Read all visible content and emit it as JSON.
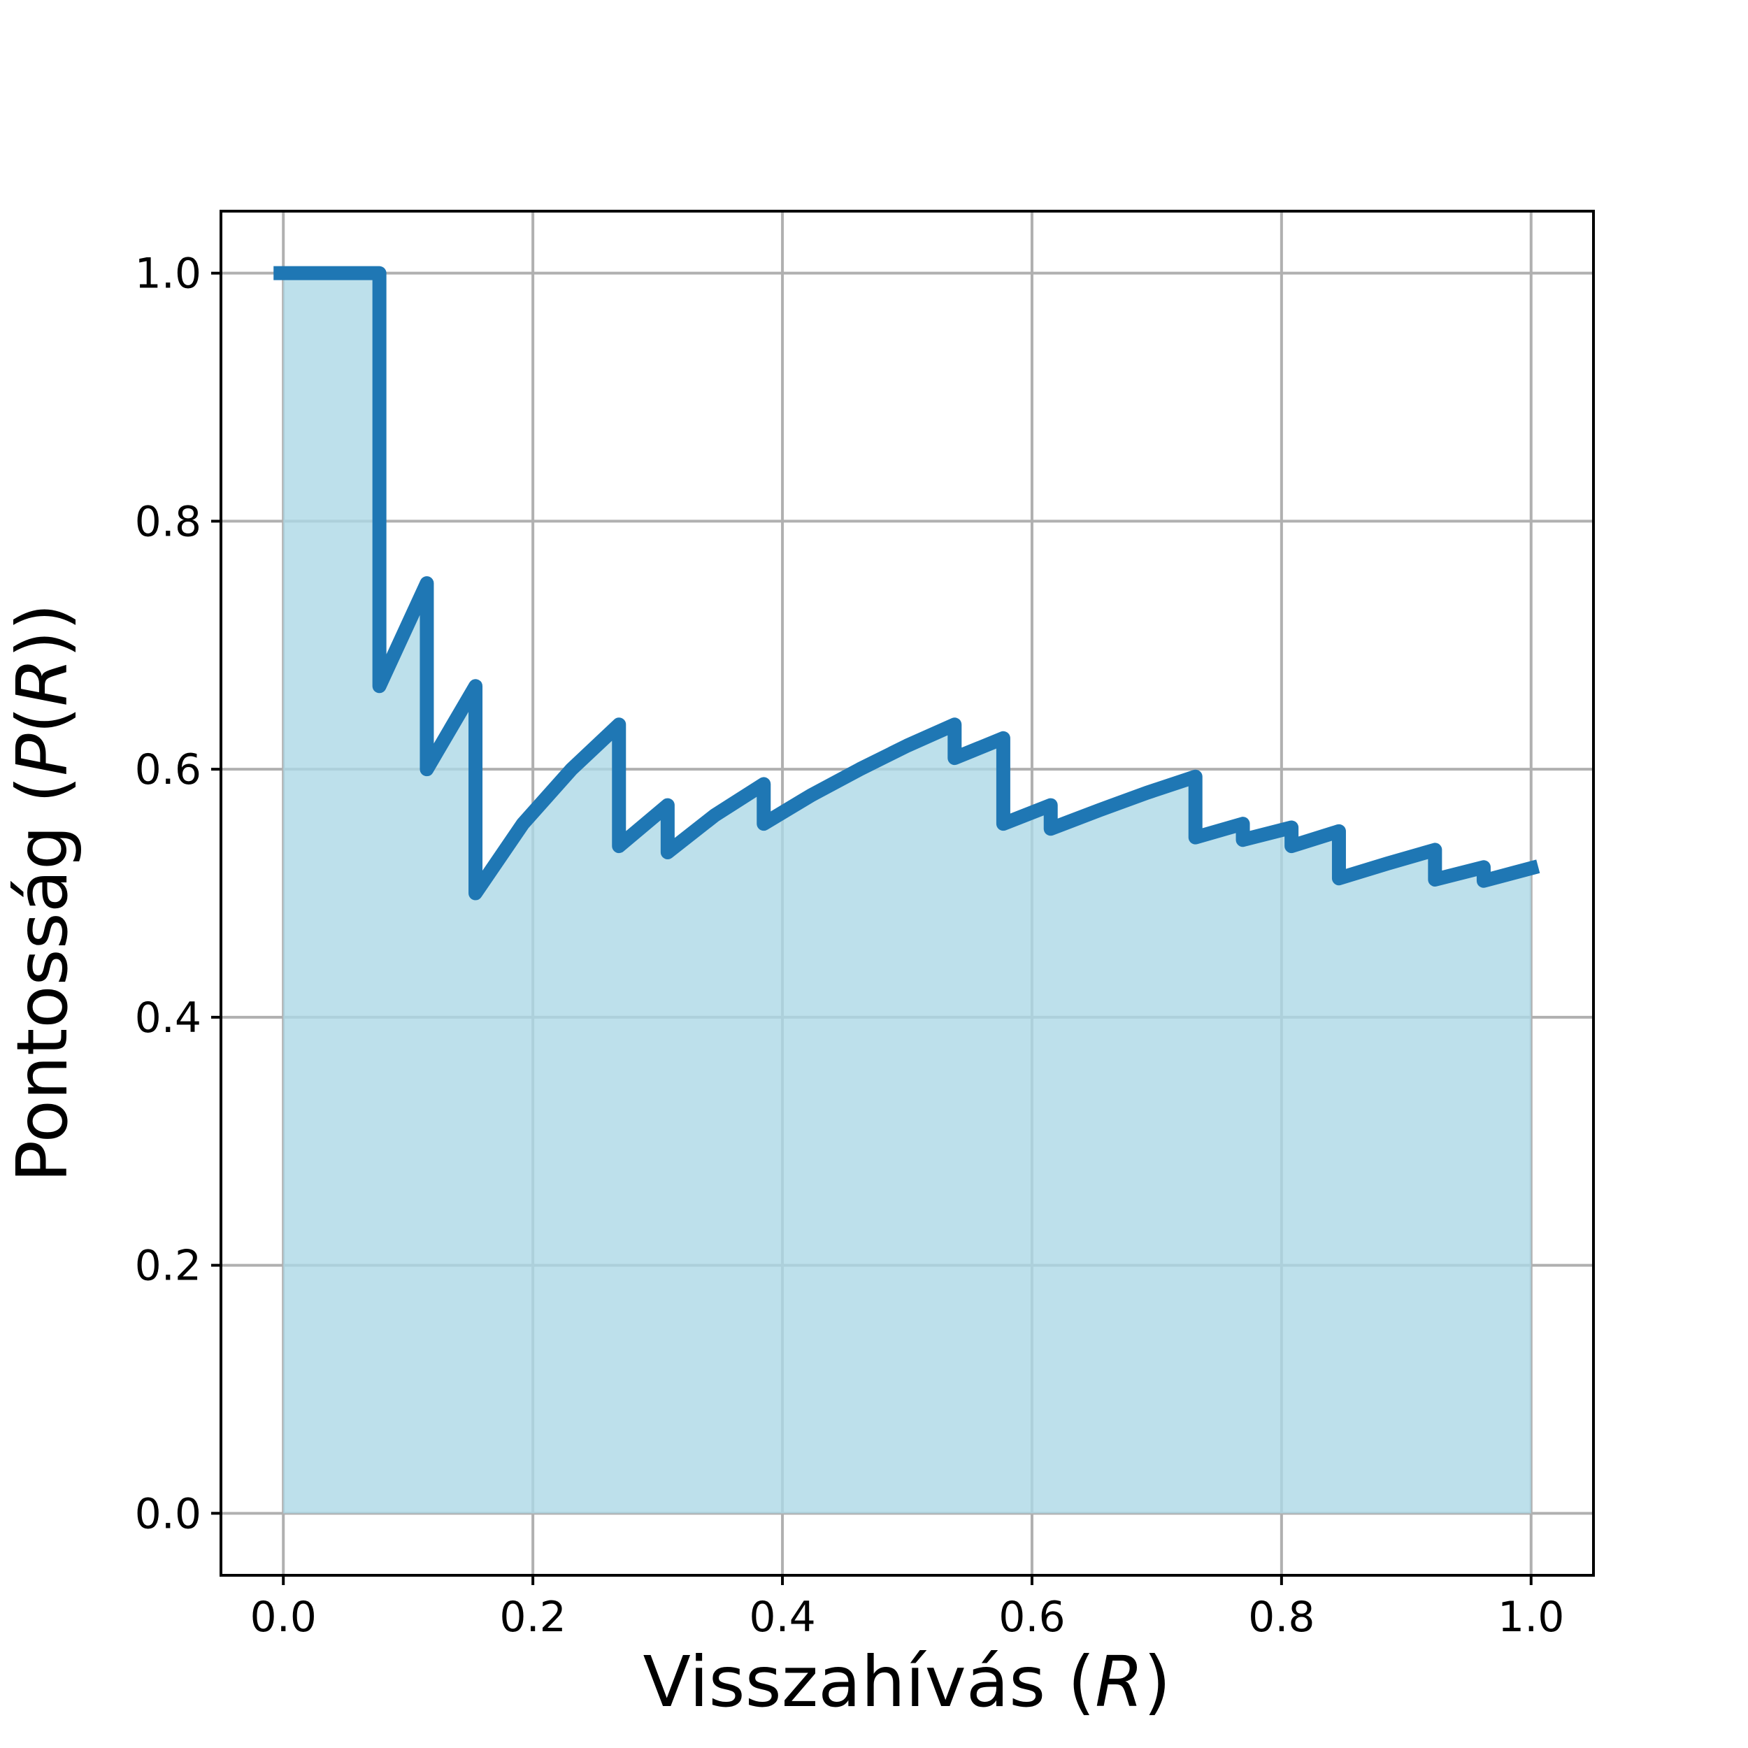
{
  "chart_data": {
    "type": "area",
    "title": "",
    "xlabel": {
      "prefix": "Visszahívás (",
      "var": "R",
      "suffix": ")"
    },
    "ylabel": {
      "prefix": "Pontosság (",
      "fn": "P",
      "open": "(",
      "var": "R",
      "close": "))"
    },
    "xlim": [
      -0.05,
      1.05
    ],
    "ylim": [
      -0.05,
      1.05
    ],
    "xticks": [
      0.0,
      0.2,
      0.4,
      0.6,
      0.8,
      1.0
    ],
    "yticks": [
      0.0,
      0.2,
      0.4,
      0.6,
      0.8,
      1.0
    ],
    "xtick_labels": [
      "0.0",
      "0.2",
      "0.4",
      "0.6",
      "0.8",
      "1.0"
    ],
    "ytick_labels": [
      "0.0",
      "0.2",
      "0.4",
      "0.6",
      "0.8",
      "1.0"
    ],
    "grid": true,
    "legend": "none",
    "colors": {
      "line": "#1f77b4",
      "fill": "#add8e6",
      "grid": "#b0b0b0"
    },
    "series": [
      {
        "x": [
          0.0,
          0.077,
          0.077,
          0.115,
          0.115,
          0.154,
          0.154,
          0.192,
          0.231,
          0.269,
          0.269,
          0.308,
          0.308,
          0.346,
          0.385,
          0.385,
          0.423,
          0.462,
          0.5,
          0.538,
          0.538,
          0.577,
          0.577,
          0.615,
          0.615,
          0.654,
          0.692,
          0.731,
          0.731,
          0.769,
          0.769,
          0.808,
          0.808,
          0.846,
          0.846,
          0.885,
          0.923,
          0.923,
          0.962,
          0.962,
          1.0
        ],
        "y": [
          1.0,
          1.0,
          0.667,
          0.75,
          0.6,
          0.667,
          0.5,
          0.556,
          0.6,
          0.636,
          0.538,
          0.571,
          0.533,
          0.563,
          0.588,
          0.556,
          0.579,
          0.6,
          0.619,
          0.636,
          0.609,
          0.625,
          0.556,
          0.571,
          0.552,
          0.567,
          0.581,
          0.594,
          0.545,
          0.556,
          0.543,
          0.553,
          0.538,
          0.55,
          0.512,
          0.524,
          0.535,
          0.511,
          0.521,
          0.51,
          0.52
        ]
      }
    ]
  }
}
